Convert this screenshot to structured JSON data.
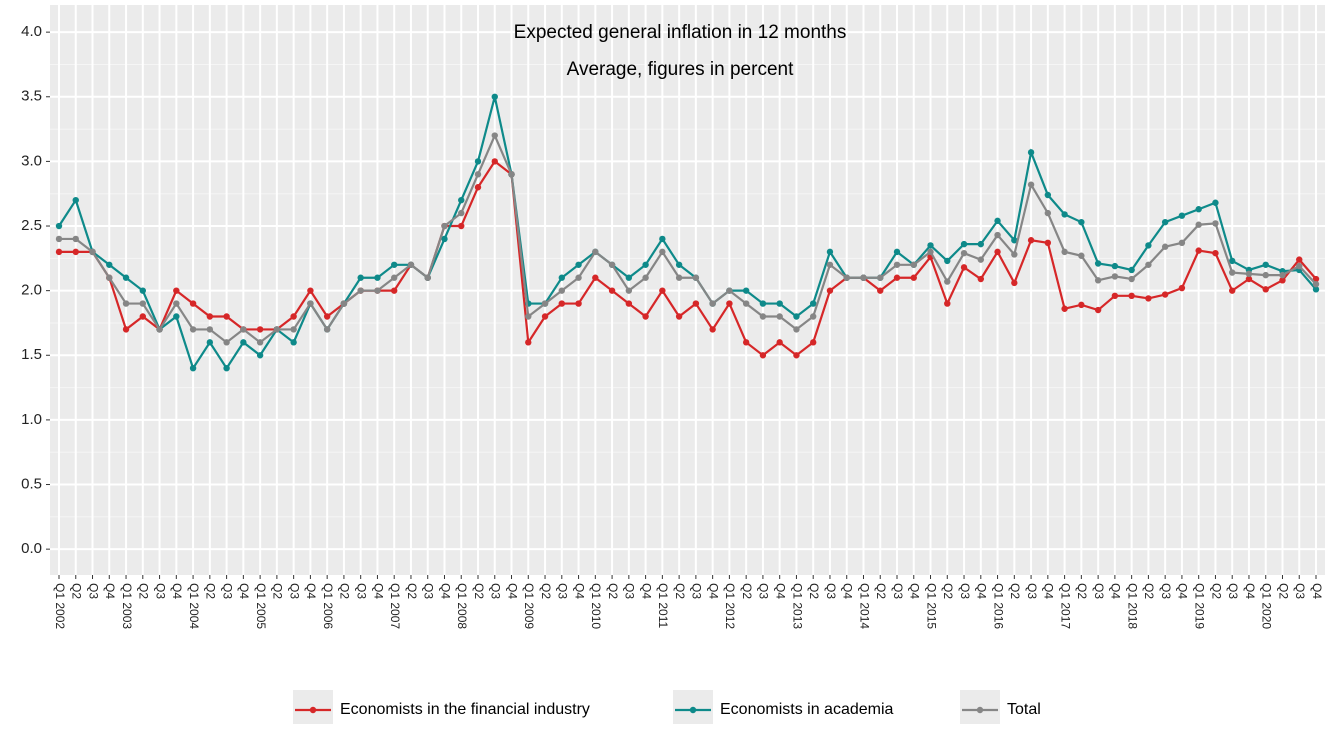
{
  "chart_data": {
    "type": "line",
    "title": "Expected general inflation in 12 months",
    "subtitle": "Average, figures in percent",
    "categories": [
      "Q1 2002",
      "Q2",
      "Q3",
      "Q4",
      "Q1 2003",
      "Q2",
      "Q3",
      "Q4",
      "Q1 2004",
      "Q2",
      "Q3",
      "Q4",
      "Q1 2005",
      "Q2",
      "Q3",
      "Q4",
      "Q1 2006",
      "Q2",
      "Q3",
      "Q4",
      "Q1 2007",
      "Q2",
      "Q3",
      "Q4",
      "Q1 2008",
      "Q2",
      "Q3",
      "Q4",
      "Q1 2009",
      "Q2",
      "Q3",
      "Q4",
      "Q1 2010",
      "Q2",
      "Q3",
      "Q4",
      "Q1 2011",
      "Q2",
      "Q3",
      "Q4",
      "Q1 2012",
      "Q2",
      "Q3",
      "Q4",
      "Q1 2013",
      "Q2",
      "Q3",
      "Q4",
      "Q1 2014",
      "Q2",
      "Q3",
      "Q4",
      "Q1 2015",
      "Q2",
      "Q3",
      "Q4",
      "Q1 2016",
      "Q2",
      "Q3",
      "Q4",
      "Q1 2017",
      "Q2",
      "Q3",
      "Q4",
      "Q1 2018",
      "Q2",
      "Q3",
      "Q4",
      "Q1 2019",
      "Q2",
      "Q3",
      "Q4",
      "Q1 2020",
      "Q2",
      "Q3",
      "Q4"
    ],
    "series": [
      {
        "name": "Economists in the financial industry",
        "color": "#d62728",
        "values": [
          2.3,
          2.3,
          2.3,
          2.1,
          1.7,
          1.8,
          1.7,
          2.0,
          1.9,
          1.8,
          1.8,
          1.7,
          1.7,
          1.7,
          1.8,
          2.0,
          1.8,
          1.9,
          2.0,
          2.0,
          2.0,
          2.2,
          2.1,
          2.5,
          2.5,
          2.8,
          3.0,
          2.9,
          1.6,
          1.8,
          1.9,
          1.9,
          2.1,
          2.0,
          1.9,
          1.8,
          2.0,
          1.8,
          1.9,
          1.7,
          1.9,
          1.6,
          1.5,
          1.6,
          1.5,
          1.6,
          2.0,
          2.1,
          2.1,
          2.0,
          2.1,
          2.1,
          2.26,
          1.9,
          2.18,
          2.09,
          2.3,
          2.06,
          2.39,
          2.37,
          1.86,
          1.89,
          1.85,
          1.96,
          1.96,
          1.94,
          1.97,
          2.02,
          2.31,
          2.29,
          2.0,
          2.09,
          2.01,
          2.08,
          2.24,
          2.09
        ]
      },
      {
        "name": "Economists in academia",
        "color": "#0e8a8a",
        "values": [
          2.5,
          2.7,
          2.3,
          2.2,
          2.1,
          2.0,
          1.7,
          1.8,
          1.4,
          1.6,
          1.4,
          1.6,
          1.5,
          1.7,
          1.6,
          1.9,
          1.7,
          1.9,
          2.1,
          2.1,
          2.2,
          2.2,
          2.1,
          2.4,
          2.7,
          3.0,
          3.5,
          2.9,
          1.9,
          1.9,
          2.1,
          2.2,
          2.3,
          2.2,
          2.1,
          2.2,
          2.4,
          2.2,
          2.1,
          1.9,
          2.0,
          2.0,
          1.9,
          1.9,
          1.8,
          1.9,
          2.3,
          2.1,
          2.1,
          2.1,
          2.3,
          2.2,
          2.35,
          2.23,
          2.36,
          2.36,
          2.54,
          2.39,
          3.07,
          2.74,
          2.59,
          2.53,
          2.21,
          2.19,
          2.16,
          2.35,
          2.53,
          2.58,
          2.63,
          2.68,
          2.23,
          2.16,
          2.2,
          2.15,
          2.16,
          2.01
        ]
      },
      {
        "name": "Total",
        "color": "#868686",
        "values": [
          2.4,
          2.4,
          2.3,
          2.1,
          1.9,
          1.9,
          1.7,
          1.9,
          1.7,
          1.7,
          1.6,
          1.7,
          1.6,
          1.7,
          1.7,
          1.9,
          1.7,
          1.9,
          2.0,
          2.0,
          2.1,
          2.2,
          2.1,
          2.5,
          2.6,
          2.9,
          3.2,
          2.9,
          1.8,
          1.9,
          2.0,
          2.1,
          2.3,
          2.2,
          2.0,
          2.1,
          2.3,
          2.1,
          2.1,
          1.9,
          2.0,
          1.9,
          1.8,
          1.8,
          1.7,
          1.8,
          2.2,
          2.1,
          2.1,
          2.1,
          2.2,
          2.2,
          2.3,
          2.07,
          2.29,
          2.24,
          2.43,
          2.28,
          2.82,
          2.6,
          2.3,
          2.27,
          2.08,
          2.11,
          2.09,
          2.2,
          2.34,
          2.37,
          2.51,
          2.52,
          2.14,
          2.13,
          2.12,
          2.12,
          2.19,
          2.05
        ]
      }
    ],
    "ylim": [
      -0.2,
      4.21
    ],
    "yticks": [
      {
        "value": 0,
        "label": "0.0"
      },
      0.5,
      {
        "value": 1,
        "label": "1.0"
      },
      1.5,
      {
        "value": 2,
        "label": "2.0"
      },
      2.5,
      {
        "value": 3,
        "label": "3.0"
      },
      3.5,
      {
        "value": 4,
        "label": "4.0"
      }
    ],
    "grid": true,
    "legend": "bottom"
  }
}
